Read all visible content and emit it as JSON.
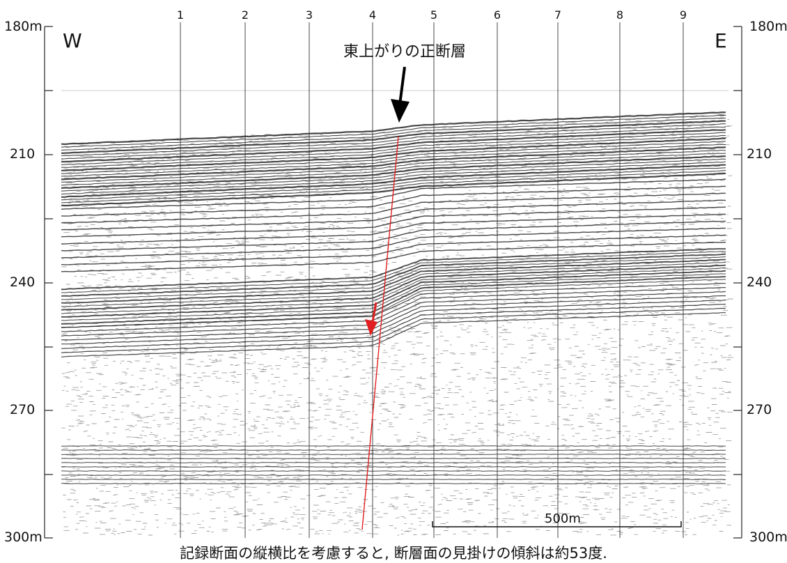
{
  "header": {
    "title": "東上がりの正断層",
    "west": "W",
    "east": "E"
  },
  "depth_ticks": {
    "labels": [
      "180m",
      "210",
      "240",
      "270",
      "300m"
    ]
  },
  "trace_markers": [
    "1",
    "2",
    "3",
    "4",
    "5",
    "6",
    "7",
    "8",
    "9"
  ],
  "scale_bar": {
    "label": "500m"
  },
  "caption": "記録断面の縦横比を考慮すると, 断層面の見掛けの傾斜は約53度.",
  "colors": {
    "fault": "#e02020",
    "arrow_black": "#000000",
    "reflector": "#1a1a1a",
    "noise": "#555555"
  }
}
